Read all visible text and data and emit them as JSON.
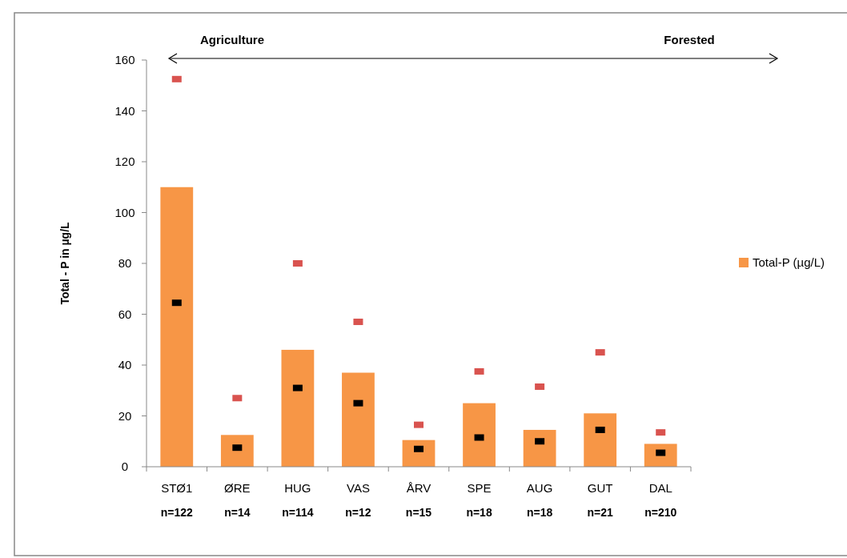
{
  "chart_data": {
    "type": "bar",
    "ylabel": "Total - P in µg/L",
    "categories": [
      "STØ1",
      "ØRE",
      "HUG",
      "VAS",
      "ÅRV",
      "SPE",
      "AUG",
      "GUT",
      "DAL"
    ],
    "series": [
      {
        "name": "Total-P (µg/L)",
        "type": "bar",
        "color": "#f79646",
        "values": [
          110,
          12.5,
          46,
          37,
          10.5,
          25,
          14.5,
          21,
          9
        ]
      },
      {
        "type": "scatter",
        "color": "#000000",
        "x": [
          "STØ1",
          "ØRE",
          "HUG",
          "VAS",
          "ÅRV",
          "SPE",
          "AUG",
          "GUT",
          "DAL"
        ],
        "values": [
          64.5,
          7.5,
          31,
          25,
          7,
          11.5,
          10,
          14.5,
          5.5
        ]
      },
      {
        "type": "scatter",
        "color": "#d9534f",
        "x": [
          "STØ1",
          "ØRE",
          "HUG",
          "VAS",
          "ÅRV",
          "SPE",
          "AUG",
          "GUT",
          "DAL"
        ],
        "values": [
          152.5,
          27,
          80,
          57,
          16.5,
          37.5,
          31.5,
          45,
          13.5
        ]
      }
    ],
    "ylim": [
      0,
      160
    ],
    "yticks": [
      0,
      20,
      40,
      60,
      80,
      100,
      120,
      140,
      160
    ],
    "grid": false,
    "legend": "right",
    "annotations": [
      "Agriculture",
      "Forested",
      "n=122",
      "n=14",
      "n=114",
      "n=12",
      "n=15",
      "n=18",
      "n=18",
      "n=21",
      "n=210"
    ]
  }
}
